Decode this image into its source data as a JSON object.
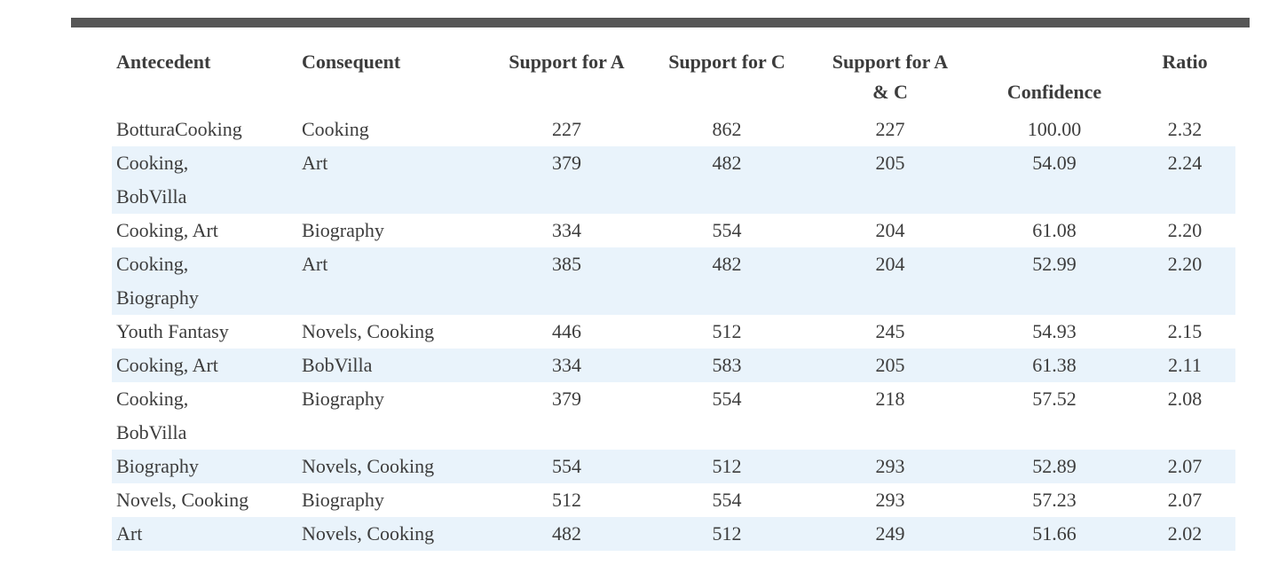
{
  "colors": {
    "top_bar": "#565656",
    "row_stripe": "#e9f3fb",
    "text": "#3c3c3c"
  },
  "table": {
    "columns": [
      {
        "label": "Antecedent"
      },
      {
        "label": "Consequent"
      },
      {
        "label": "Support for A"
      },
      {
        "label": "Support for C"
      },
      {
        "label": "Support for A & C",
        "label_lines": [
          "Support for A",
          "& C"
        ]
      },
      {
        "label": "Confidence"
      },
      {
        "label": "Ratio"
      }
    ],
    "rows": [
      [
        "BotturaCooking",
        "Cooking",
        "227",
        "862",
        "227",
        "100.00",
        "2.32"
      ],
      [
        "Cooking,\nBobVilla",
        "Art",
        "379",
        "482",
        "205",
        "54.09",
        "2.24"
      ],
      [
        "Cooking, Art",
        "Biography",
        "334",
        "554",
        "204",
        "61.08",
        "2.20"
      ],
      [
        "Cooking,\nBiography",
        "Art",
        "385",
        "482",
        "204",
        "52.99",
        "2.20"
      ],
      [
        "Youth Fantasy",
        "Novels, Cooking",
        "446",
        "512",
        "245",
        "54.93",
        "2.15"
      ],
      [
        "Cooking, Art",
        "BobVilla",
        "334",
        "583",
        "205",
        "61.38",
        "2.11"
      ],
      [
        "Cooking,\nBobVilla",
        "Biography",
        "379",
        "554",
        "218",
        "57.52",
        "2.08"
      ],
      [
        "Biography",
        "Novels, Cooking",
        "554",
        "512",
        "293",
        "52.89",
        "2.07"
      ],
      [
        "Novels, Cooking",
        "Biography",
        "512",
        "554",
        "293",
        "57.23",
        "2.07"
      ],
      [
        "Art",
        "Novels, Cooking",
        "482",
        "512",
        "249",
        "51.66",
        "2.02"
      ]
    ]
  }
}
